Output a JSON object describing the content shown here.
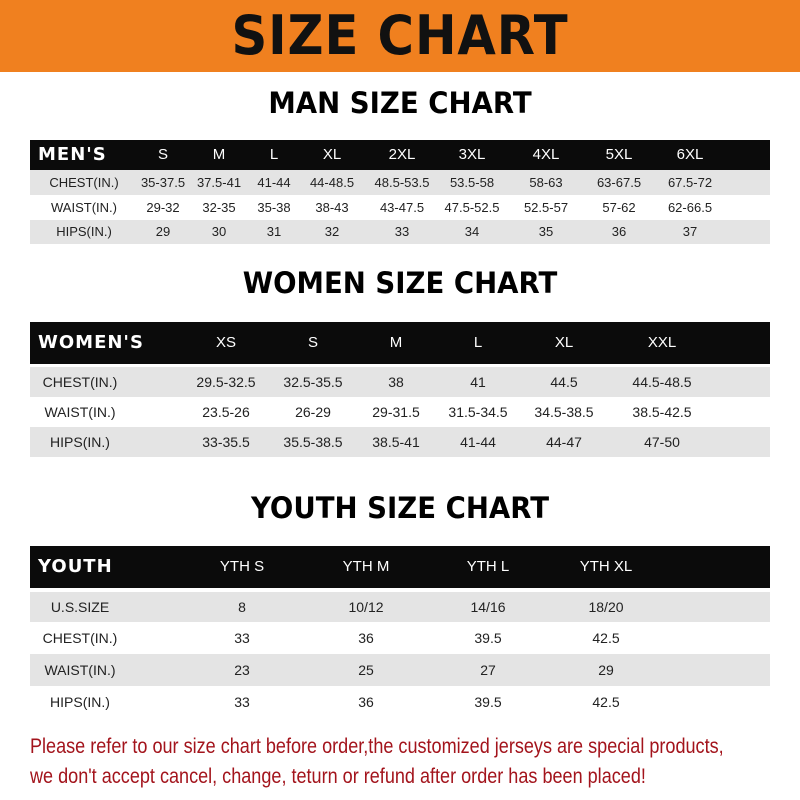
{
  "title": "SIZE CHART",
  "men": {
    "title": "MAN SIZE CHART",
    "header": [
      "MEN'S",
      "S",
      "M",
      "L",
      "XL",
      "2XL",
      "3XL",
      "4XL",
      "5XL",
      "6XL"
    ],
    "rows": [
      [
        "CHEST(IN.)",
        "35-37.5",
        "37.5-41",
        "41-44",
        "44-48.5",
        "48.5-53.5",
        "53.5-58",
        "58-63",
        "63-67.5",
        "67.5-72"
      ],
      [
        "WAIST(IN.)",
        "29-32",
        "32-35",
        "35-38",
        "38-43",
        "43-47.5",
        "47.5-52.5",
        "52.5-57",
        "57-62",
        "62-66.5"
      ],
      [
        "HIPS(IN.)",
        "29",
        "30",
        "31",
        "32",
        "33",
        "34",
        "35",
        "36",
        "37"
      ]
    ]
  },
  "women": {
    "title": "WOMEN SIZE CHART",
    "header": [
      "WOMEN'S",
      "XS",
      "S",
      "M",
      "L",
      "XL",
      "XXL"
    ],
    "rows": [
      [
        "CHEST(IN.)",
        "29.5-32.5",
        "32.5-35.5",
        "38",
        "41",
        "44.5",
        "44.5-48.5"
      ],
      [
        "WAIST(IN.)",
        "23.5-26",
        "26-29",
        "29-31.5",
        "31.5-34.5",
        "34.5-38.5",
        "38.5-42.5"
      ],
      [
        "HIPS(IN.)",
        "33-35.5",
        "35.5-38.5",
        "38.5-41",
        "41-44",
        "44-47",
        "47-50"
      ]
    ]
  },
  "youth": {
    "title": "YOUTH SIZE CHART",
    "header": [
      "YOUTH",
      "YTH S",
      "YTH M",
      "YTH L",
      "YTH XL"
    ],
    "rows": [
      [
        "U.S.SIZE",
        "8",
        "10/12",
        "14/16",
        "18/20"
      ],
      [
        "CHEST(IN.)",
        "33",
        "36",
        "39.5",
        "42.5"
      ],
      [
        "WAIST(IN.)",
        "23",
        "25",
        "27",
        "29"
      ],
      [
        "HIPS(IN.)",
        "33",
        "36",
        "39.5",
        "42.5"
      ]
    ]
  },
  "footer": {
    "line1": "Please refer to our size chart before order,the customized jerseys are special products,",
    "line2": "we don't accept cancel, change, teturn or refund after order has been placed!"
  },
  "colors": {
    "banner": "#f0801f",
    "header_row": "#0b0b0b",
    "alt_row": "#e4e4e4",
    "footer_text": "#a3141c"
  }
}
